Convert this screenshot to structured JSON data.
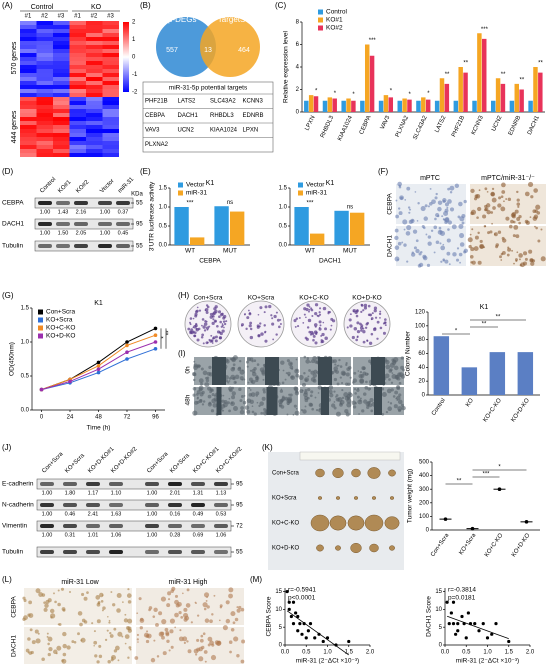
{
  "panels": {
    "A": {
      "label": "(A)",
      "groups": [
        "Control",
        "KO"
      ],
      "samples": [
        "#1",
        "#2",
        "#3",
        "#1",
        "#2",
        "#3"
      ],
      "row_groups": [
        "570 genes",
        "444 genes"
      ],
      "colorbar_ticks": [
        2,
        1,
        0,
        -1,
        -2
      ]
    },
    "B": {
      "label": "(B)",
      "sets": [
        "up-DEGs",
        "TargetScan"
      ],
      "counts": [
        557,
        13,
        464
      ],
      "table_title": "miR-31-5p potential targets",
      "table": [
        [
          "PHF21B",
          "LATS2",
          "SLC43A2",
          "KCNN3"
        ],
        [
          "CEBPA",
          "DACH1",
          "RHBDL3",
          "EDNRB"
        ],
        [
          "VAV3",
          "UCN2",
          "KIAA1024",
          "LPXN"
        ],
        [
          "PLXNA2"
        ]
      ]
    },
    "C": {
      "label": "(C)",
      "chart": {
        "type": "bar",
        "ylabel": "Relative expression level",
        "categories": [
          "LPXN",
          "RHBDL3",
          "KIAA1024",
          "CEBPA",
          "VAV3",
          "PLXNA2",
          "SLC43A2",
          "LATS2",
          "PHF21B",
          "KCNN3",
          "UCN2",
          "EDNRB",
          "DACH1"
        ],
        "series": [
          {
            "name": "Control",
            "color": "#2f9be0",
            "values": [
              1,
              1,
              1,
              1,
              1,
              1,
              1,
              1,
              1,
              1,
              1,
              1,
              1
            ]
          },
          {
            "name": "KO#1",
            "color": "#f5a623",
            "values": [
              1.5,
              1.3,
              1.2,
              6,
              1.5,
              1.2,
              1.3,
              3,
              4,
              7,
              3,
              2.5,
              4
            ]
          },
          {
            "name": "KO#2",
            "color": "#e8335a",
            "values": [
              1.4,
              1.2,
              1,
              5,
              1.3,
              1.1,
              1.1,
              2.5,
              3.5,
              6.5,
              2.5,
              2,
              3.5
            ]
          }
        ],
        "significance": [
          "*",
          "*",
          "*",
          "***",
          "*",
          "*",
          "*",
          "**",
          "**",
          "***",
          "**",
          "**",
          "**"
        ],
        "ylim": [
          0,
          8
        ],
        "yticks": [
          0,
          2,
          4,
          6,
          8
        ]
      }
    },
    "D": {
      "label": "(D)",
      "lanes": [
        "Control",
        "KO#1",
        "KO#2",
        "Vector",
        "miR-31"
      ],
      "kda_unit": "KDa",
      "rows": [
        {
          "name": "CEBPA",
          "kda": "55",
          "quant": [
            "1.00",
            "1.43",
            "2.16",
            "1.00",
            "0.37"
          ]
        },
        {
          "name": "DACH1",
          "kda": "95",
          "quant": [
            "1.00",
            "1.50",
            "2.05",
            "1.00",
            "0.45"
          ]
        },
        {
          "name": "Tubulin",
          "kda": "55"
        }
      ]
    },
    "E": {
      "label": "(E)",
      "charts": [
        {
          "type": "bar",
          "title": "K1",
          "xlabel": "CEBPA",
          "ylabel": "3'UTR luciferase activity",
          "categories": [
            "WT",
            "MUT"
          ],
          "series": [
            {
              "name": "Vector",
              "color": "#2f9be0",
              "values": [
                1,
                1.02
              ]
            },
            {
              "name": "miR-31",
              "color": "#f5a623",
              "values": [
                0.2,
                0.88
              ]
            }
          ],
          "significance": [
            "***",
            "ns"
          ],
          "ylim": [
            0,
            1.5
          ],
          "yticks": [
            {
              "value": 0,
              "label": "0.0"
            },
            {
              "value": 0.5,
              "label": "0.5"
            },
            {
              "value": 1,
              "label": "1.0"
            },
            {
              "value": 1.5,
              "label": "1.5"
            }
          ]
        },
        {
          "type": "bar",
          "title": "K1",
          "xlabel": "DACH1",
          "categories": [
            "WT",
            "MUT"
          ],
          "series": [
            {
              "name": "Vector",
              "color": "#2f9be0",
              "values": [
                1,
                0.9
              ]
            },
            {
              "name": "miR-31",
              "color": "#f5a623",
              "values": [
                0.3,
                0.85
              ]
            }
          ],
          "significance": [
            "***",
            "ns"
          ],
          "ylim": [
            0,
            1.5
          ],
          "yticks": [
            {
              "value": 0,
              "label": "0.0"
            },
            {
              "value": 0.5,
              "label": "0.5"
            },
            {
              "value": 1,
              "label": "1.0"
            },
            {
              "value": 1.5,
              "label": "1.5"
            }
          ]
        }
      ]
    },
    "F": {
      "label": "(F)",
      "columns": [
        "mPTC",
        "mPTC/miR-31⁻/⁻"
      ],
      "rows": [
        "CEBPA",
        "DACH1"
      ]
    },
    "G": {
      "label": "(G)",
      "chart": {
        "type": "line",
        "title": "K1",
        "xlabel": "Time (h)",
        "ylabel": "OD(450nm)",
        "x": [
          0,
          24,
          48,
          72,
          96
        ],
        "series": [
          {
            "name": "Con+Scra",
            "color": "#000000",
            "values": [
              0.3,
              0.45,
              0.7,
              1.0,
              1.2
            ]
          },
          {
            "name": "KO+Scra",
            "color": "#2f6fd6",
            "values": [
              0.3,
              0.4,
              0.55,
              0.75,
              0.9
            ]
          },
          {
            "name": "KO+C-KO",
            "color": "#f08a24",
            "values": [
              0.3,
              0.45,
              0.65,
              0.95,
              1.1
            ]
          },
          {
            "name": "KO+D-KO",
            "color": "#9b2fae",
            "values": [
              0.3,
              0.42,
              0.6,
              0.85,
              1.0
            ]
          }
        ],
        "annotations": [
          "*",
          "**"
        ],
        "xlim": [
          -8,
          104
        ],
        "xticks": [
          0,
          24,
          48,
          72,
          96
        ],
        "ylim": [
          0,
          1.5
        ],
        "yticks": [
          {
            "value": 0,
            "label": "0.0"
          },
          {
            "value": 0.5,
            "label": "0.5"
          },
          {
            "value": 1,
            "label": "1.0"
          },
          {
            "value": 1.5,
            "label": "1.5"
          }
        ]
      }
    },
    "H": {
      "label": "(H)",
      "plates": [
        "Con+Scra",
        "KO+Scra",
        "KO+C-KO",
        "KO+D-KO"
      ],
      "chart": {
        "type": "bar",
        "title": "K1",
        "ylabel": "Colony Number",
        "categories": [
          "Control",
          "KO",
          "KO+C-KO",
          "KO+D-KO"
        ],
        "series": [
          {
            "color": "#5b7fc4",
            "values": [
              85,
              40,
              62,
              62
            ]
          }
        ],
        "comparisons": [
          "*",
          "**",
          "**"
        ],
        "ylim": [
          0,
          120
        ],
        "yticks": [
          0,
          20,
          40,
          60,
          80,
          100,
          120
        ]
      }
    },
    "I": {
      "label": "(I)",
      "rows": [
        "0h",
        "48h"
      ]
    },
    "J": {
      "label": "(J)",
      "lanes": [
        "Con+Scra",
        "KO+Scra",
        "KO+D-KO#1",
        "KO+D-KO#2",
        "Con+Scra",
        "KO+Scra",
        "KO+C-KO#1",
        "KO+C-KO#2"
      ],
      "rows": [
        {
          "name": "E-cadherin",
          "kda": "95",
          "quant": [
            "1.00",
            "1.80",
            "1.17",
            "1.10",
            "1.00",
            "2.01",
            "1.31",
            "1.13"
          ]
        },
        {
          "name": "N-cadherin",
          "kda": "95",
          "quant": [
            "1.00",
            "0.46",
            "2.41",
            "1.63",
            "1.00",
            "0.16",
            "0.49",
            "0.53"
          ]
        },
        {
          "name": "Vimentin",
          "kda": "72",
          "quant": [
            "1.00",
            "0.31",
            "1.01",
            "1.06",
            "1.00",
            "0.28",
            "0.69",
            "1.06"
          ]
        },
        {
          "name": "Tubulin",
          "kda": "55"
        }
      ]
    },
    "K": {
      "label": "(K)",
      "rows": [
        "Con+Scra",
        "KO+Scra",
        "KO+C-KO",
        "KO+D-KO"
      ],
      "chart": {
        "type": "dot",
        "ylabel": "Tumor weight (mg)",
        "categories": [
          "Con+Scra",
          "KO+Scra",
          "KO+C-KO",
          "KO+D-KO"
        ],
        "series": [
          {
            "color": "#000000",
            "values": [
              80,
              10,
              300,
              60
            ]
          }
        ],
        "comparisons": [
          "**",
          "***",
          "*"
        ],
        "ylim": [
          0,
          500
        ],
        "yticks": [
          0,
          100,
          200,
          300,
          400,
          500
        ]
      }
    },
    "L": {
      "label": "(L)",
      "columns": [
        "miR-31 Low",
        "miR-31 High"
      ],
      "rows": [
        "CEBPA",
        "DACH1"
      ]
    },
    "M": {
      "label": "(M)",
      "charts": [
        {
          "type": "scatter",
          "ylabel": "CEBPA Score",
          "xlabel": "miR-31 (2⁻ΔCt ×10⁻³)",
          "annotations": [
            "r=-0.5941",
            "p<0.0001"
          ],
          "x": [
            0.05,
            0.1,
            0.1,
            0.15,
            0.2,
            0.2,
            0.25,
            0.3,
            0.3,
            0.35,
            0.4,
            0.45,
            0.5,
            0.55,
            0.6,
            0.7,
            0.8,
            0.9,
            1.0,
            1.2,
            1.5
          ],
          "y": [
            15,
            12,
            10,
            8,
            12,
            6,
            9,
            4,
            8,
            6,
            3,
            6,
            2,
            4,
            6,
            2,
            3,
            1,
            2,
            0,
            1
          ],
          "xlim": [
            0,
            2
          ],
          "xticks": [
            {
              "value": 0,
              "label": "0.0"
            },
            {
              "value": 0.5,
              "label": "0.5"
            },
            {
              "value": 1,
              "label": "1.0"
            },
            {
              "value": 1.5,
              "label": "1.5"
            },
            {
              "value": 2,
              "label": "2.0"
            }
          ],
          "ylim": [
            0,
            16
          ],
          "yticks": [
            0,
            5,
            10,
            15
          ]
        },
        {
          "type": "scatter",
          "ylabel": "DACH1 Score",
          "xlabel": "miR-31 (2⁻ΔCt ×10⁻³)",
          "annotations": [
            "r=-0.3814",
            "p=0.0181"
          ],
          "x": [
            0.05,
            0.1,
            0.15,
            0.2,
            0.2,
            0.3,
            0.3,
            0.4,
            0.45,
            0.5,
            0.6,
            0.7,
            0.8,
            0.9,
            1.0,
            1.1,
            1.2,
            1.5,
            0.25,
            0.55
          ],
          "y": [
            12,
            6,
            9,
            6,
            12,
            4,
            6,
            8,
            6,
            2,
            6,
            6,
            4,
            6,
            2,
            3,
            6,
            1,
            3,
            9
          ],
          "xlim": [
            0,
            2
          ],
          "xticks": [
            {
              "value": 0,
              "label": "0.0"
            },
            {
              "value": 0.5,
              "label": "0.5"
            },
            {
              "value": 1,
              "label": "1.0"
            },
            {
              "value": 1.5,
              "label": "1.5"
            },
            {
              "value": 2,
              "label": "2.0"
            }
          ],
          "ylim": [
            0,
            16
          ],
          "yticks": [
            0,
            5,
            10,
            15
          ]
        }
      ]
    }
  }
}
